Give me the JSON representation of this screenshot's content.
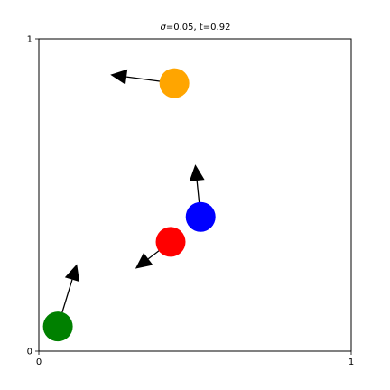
{
  "chart_data": {
    "type": "scatter",
    "title_sigma_symbol": "σ",
    "title_rest": "=0.05, t=0.92",
    "xlabel": "",
    "ylabel": "",
    "xlim": [
      0,
      1
    ],
    "ylim": [
      0,
      1
    ],
    "x_ticks": [
      "0",
      "1"
    ],
    "y_ticks": [
      "0",
      "1"
    ],
    "grid": false,
    "points": [
      {
        "color": "#ffa500",
        "x": 0.434,
        "y": 0.858,
        "dx": -0.205,
        "dy": 0.027
      },
      {
        "color": "#0000ff",
        "x": 0.518,
        "y": 0.43,
        "dx": -0.017,
        "dy": 0.168
      },
      {
        "color": "#ff0000",
        "x": 0.422,
        "y": 0.35,
        "dx": -0.113,
        "dy": -0.086
      },
      {
        "color": "#008000",
        "x": 0.061,
        "y": 0.079,
        "dx": 0.061,
        "dy": 0.2
      }
    ]
  }
}
